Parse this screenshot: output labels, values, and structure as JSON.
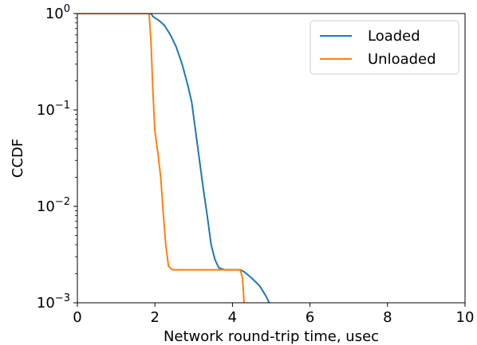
{
  "chart_data": {
    "type": "line",
    "title": "",
    "xlabel": "Network round-trip time, usec",
    "ylabel": "CCDF",
    "xlim": [
      0,
      10
    ],
    "ylim": [
      0.001,
      1
    ],
    "yscale": "log",
    "grid": false,
    "legend_position": "top-right",
    "x_ticks": [
      {
        "value": 0,
        "label": "0"
      },
      {
        "value": 2,
        "label": "2"
      },
      {
        "value": 4,
        "label": "4"
      },
      {
        "value": 6,
        "label": "6"
      },
      {
        "value": 8,
        "label": "8"
      },
      {
        "value": 10,
        "label": "10"
      }
    ],
    "y_ticks": [
      {
        "value": 1,
        "base": "10",
        "exp": "0"
      },
      {
        "value": 0.1,
        "base": "10",
        "exp": "−1"
      },
      {
        "value": 0.01,
        "base": "10",
        "exp": "−2"
      },
      {
        "value": 0.001,
        "base": "10",
        "exp": "−3"
      }
    ],
    "series": [
      {
        "name": "Loaded",
        "color": "#1f77b4",
        "points": [
          [
            0.0,
            1.0
          ],
          [
            1.9,
            1.0
          ],
          [
            1.95,
            0.93
          ],
          [
            2.1,
            0.85
          ],
          [
            2.25,
            0.75
          ],
          [
            2.4,
            0.6
          ],
          [
            2.55,
            0.45
          ],
          [
            2.7,
            0.3
          ],
          [
            2.85,
            0.18
          ],
          [
            2.95,
            0.12
          ],
          [
            3.05,
            0.06
          ],
          [
            3.15,
            0.03
          ],
          [
            3.25,
            0.015
          ],
          [
            3.35,
            0.008
          ],
          [
            3.45,
            0.004
          ],
          [
            3.55,
            0.0028
          ],
          [
            3.65,
            0.0023
          ],
          [
            3.8,
            0.0022
          ],
          [
            4.0,
            0.0022
          ],
          [
            4.2,
            0.0022
          ],
          [
            4.3,
            0.0021
          ],
          [
            4.5,
            0.0018
          ],
          [
            4.7,
            0.0015
          ],
          [
            4.85,
            0.0012
          ],
          [
            4.95,
            0.001
          ]
        ]
      },
      {
        "name": "Unloaded",
        "color": "#ff7f0e",
        "points": [
          [
            0.0,
            1.0
          ],
          [
            1.85,
            1.0
          ],
          [
            1.9,
            0.5
          ],
          [
            1.95,
            0.15
          ],
          [
            2.0,
            0.06
          ],
          [
            2.08,
            0.035
          ],
          [
            2.15,
            0.02
          ],
          [
            2.22,
            0.008
          ],
          [
            2.28,
            0.004
          ],
          [
            2.35,
            0.0024
          ],
          [
            2.45,
            0.0022
          ],
          [
            3.0,
            0.0022
          ],
          [
            3.5,
            0.0022
          ],
          [
            4.0,
            0.0022
          ],
          [
            4.2,
            0.0022
          ],
          [
            4.26,
            0.0018
          ],
          [
            4.3,
            0.001
          ]
        ]
      }
    ]
  }
}
